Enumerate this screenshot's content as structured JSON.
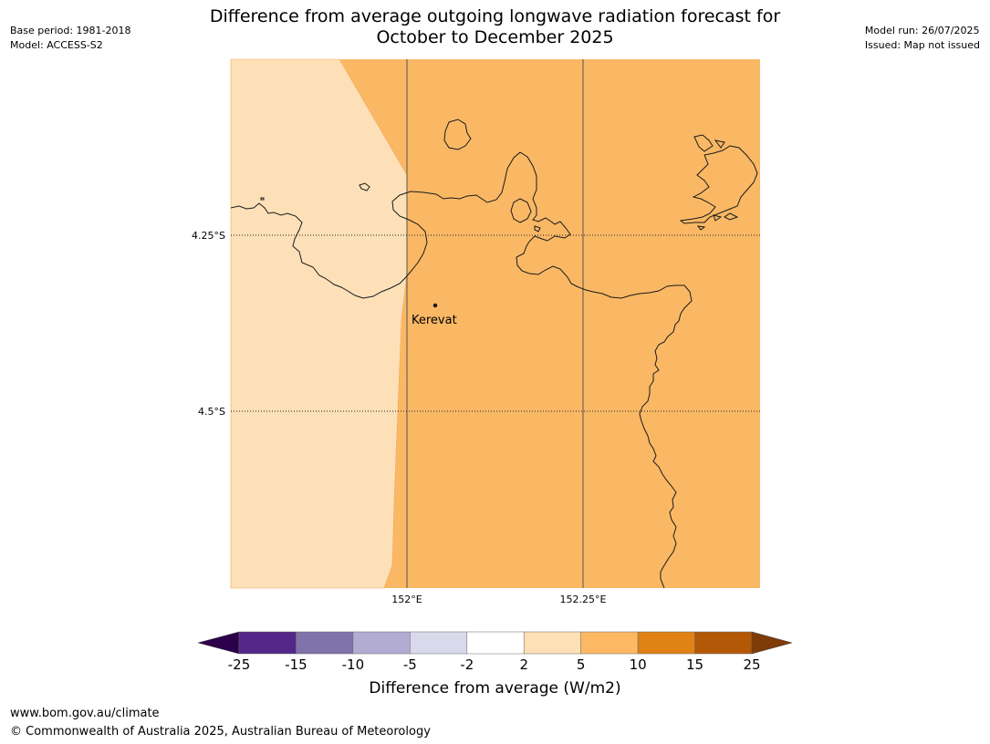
{
  "header": {
    "base_period": "Base period: 1981-2018",
    "model": "Model: ACCESS-S2",
    "model_run": "Model run: 26/07/2025",
    "issued": "Issued: Map not issued",
    "title_line1": "Difference from average outgoing longwave radiation forecast for",
    "title_line2": "October to December 2025"
  },
  "map": {
    "place_label": "Kerevat",
    "lat_labels": [
      "4.25°S",
      "4.5°S"
    ],
    "lon_labels": [
      "152°E",
      "152.25°E"
    ],
    "category_colors": {
      "2_to_5": "#fde0b7",
      "5_to_10": "#fab865"
    }
  },
  "colorbar": {
    "ticks": [
      "-25",
      "-15",
      "-10",
      "-5",
      "-2",
      "2",
      "5",
      "10",
      "15",
      "25"
    ],
    "colors": [
      "#542788",
      "#8073ac",
      "#b2abd2",
      "#d8daeb",
      "#ffffff",
      "#fee0b6",
      "#fdb863",
      "#e08214",
      "#b35806"
    ],
    "under_color": "#2d004b",
    "over_color": "#7f3b08",
    "label": "Difference from average (W/m2)"
  },
  "footer": {
    "url": "www.bom.gov.au/climate",
    "copyright": "© Commonwealth of Australia 2025, Australian Bureau of Meteorology"
  }
}
